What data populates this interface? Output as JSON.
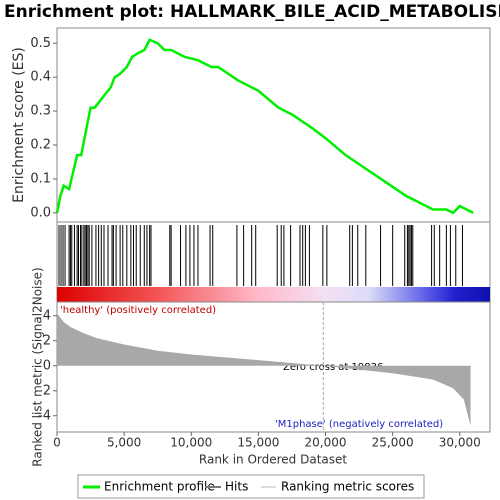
{
  "chart_data": [
    {
      "type": "line",
      "title": "Enrichment plot: HALLMARK_BILE_ACID_METABOLISM",
      "ylabel": "Enrichment score (ES)",
      "xlim": [
        0,
        32250
      ],
      "ylim": [
        -0.027,
        0.545
      ],
      "yticks": [
        {
          "value": 0,
          "label": "0.0"
        },
        {
          "value": 0.1,
          "label": "0.1"
        },
        {
          "value": 0.2,
          "label": "0.2"
        },
        {
          "value": 0.3,
          "label": "0.3"
        },
        {
          "value": 0.4,
          "label": "0.4"
        },
        {
          "value": 0.5,
          "label": "0.5"
        }
      ],
      "x": [
        0,
        250,
        500,
        900,
        1200,
        1500,
        1800,
        2100,
        2300,
        2500,
        2800,
        3200,
        3600,
        4000,
        4300,
        4700,
        5200,
        5600,
        6000,
        6500,
        6900,
        7500,
        8000,
        8500,
        9500,
        10500,
        11500,
        12000,
        13500,
        15000,
        16500,
        17500,
        19000,
        20000,
        21500,
        23000,
        24500,
        26000,
        27000,
        28000,
        29000,
        29500,
        30000,
        30500,
        31000
      ],
      "series": [
        {
          "name": "Enrichment profile",
          "color": "#00ee00",
          "values": [
            0.0,
            0.05,
            0.08,
            0.07,
            0.12,
            0.17,
            0.17,
            0.23,
            0.27,
            0.31,
            0.31,
            0.33,
            0.35,
            0.37,
            0.4,
            0.41,
            0.43,
            0.46,
            0.47,
            0.48,
            0.51,
            0.5,
            0.48,
            0.48,
            0.46,
            0.45,
            0.43,
            0.43,
            0.39,
            0.36,
            0.31,
            0.29,
            0.25,
            0.22,
            0.17,
            0.13,
            0.09,
            0.05,
            0.03,
            0.01,
            0.01,
            0.0,
            0.02,
            0.01,
            0.0
          ]
        }
      ]
    },
    {
      "type": "rug",
      "name": "Hits",
      "color": "#000000",
      "hits": [
        150,
        300,
        450,
        600,
        900,
        1000,
        1100,
        1300,
        1500,
        1600,
        1750,
        1850,
        2000,
        2100,
        2200,
        2300,
        2400,
        2600,
        2900,
        3100,
        3300,
        3500,
        3800,
        4100,
        4200,
        4400,
        4700,
        4900,
        5200,
        5500,
        5700,
        5900,
        6200,
        6500,
        6700,
        6900,
        7000,
        8400,
        8500,
        9200,
        9600,
        9900,
        10200,
        10500,
        11400,
        11600,
        13400,
        13900,
        14500,
        14800,
        16400,
        16700,
        16900,
        17400,
        18100,
        18300,
        18500,
        18800,
        19800,
        20100,
        21800,
        22000,
        22400,
        23000,
        24100,
        25000,
        25900,
        26100,
        26200,
        26300,
        26400,
        26500,
        27900,
        28100,
        28500,
        29000,
        29300,
        29700,
        30200
      ]
    },
    {
      "type": "area",
      "name": "Ranking metric scores",
      "color": "#a8a8a8",
      "ylabel": "Ranked list metric (Signal2Noise)",
      "xlabel": "Rank in Ordered Dataset",
      "ylim": [
        -5.3,
        5.1
      ],
      "yticks": [
        -4,
        -2,
        0,
        2,
        4
      ],
      "xticks": [
        0,
        {
          "value": 5000,
          "label": "5,000"
        },
        {
          "value": 10000,
          "label": "10,000"
        },
        {
          "value": 15000,
          "label": "15,000"
        },
        {
          "value": 20000,
          "label": "20,000"
        },
        {
          "value": 25000,
          "label": "25,000"
        },
        {
          "value": 30000,
          "label": "30,000"
        }
      ],
      "x": [
        0,
        500,
        1000,
        2000,
        3000,
        5000,
        7500,
        10000,
        15000,
        19836,
        25000,
        28000,
        29500,
        30300,
        30800
      ],
      "values": [
        4.2,
        3.5,
        3.1,
        2.6,
        2.2,
        1.7,
        1.2,
        0.9,
        0.45,
        0,
        -0.6,
        -1.1,
        -1.8,
        -2.7,
        -4.8
      ],
      "zero_cross": 19836,
      "annotations": [
        "'healthy' (positively correlated)",
        "Zero cross at 19836",
        "'M1phase' (negatively correlated)"
      ]
    }
  ],
  "legend": [
    "Enrichment profile",
    "Hits",
    "Ranking metric scores"
  ]
}
